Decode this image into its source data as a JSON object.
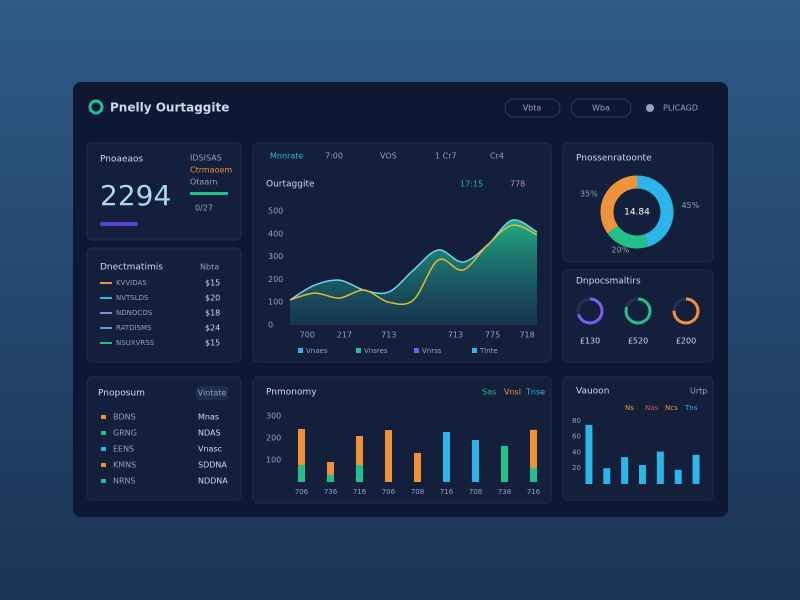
{
  "header": {
    "title": "Pnelly Ourtaggite",
    "buttons": [
      "Vbta",
      "Wba"
    ],
    "user": "PLICAGD"
  },
  "kpi": {
    "label": "Pnoaeaos",
    "value": "2294",
    "side": [
      "IDSISAS",
      "Ctrmaoem",
      "Otaarn"
    ],
    "foot": "0/27"
  },
  "activity": {
    "title": "Dnectmatimis",
    "badge": "Nbta",
    "rows": [
      {
        "label": "KVVIDAS",
        "value": "$15"
      },
      {
        "label": "NVTSLDS",
        "value": "$20"
      },
      {
        "label": "NDNOCOS",
        "value": "$18"
      },
      {
        "label": "RATDISMS",
        "value": "$24"
      },
      {
        "label": "NSUXVRSS",
        "value": "$15"
      }
    ]
  },
  "line_chart": {
    "type": "area",
    "tabs": [
      "Mnnrate",
      "7:00",
      "VOS",
      "1 Cr7",
      "Cr4"
    ],
    "title": "Ourtaggite",
    "chips": [
      "17:15",
      "778"
    ],
    "legend": [
      "Vnaes",
      "Vnsres",
      "Vnrss",
      "Tlnte"
    ],
    "x": [
      0,
      1,
      2,
      3,
      4,
      5,
      6,
      7,
      8,
      9,
      10
    ],
    "xlim": [
      0,
      10
    ],
    "xticks": [
      {
        "value": 0.7,
        "label": "700"
      },
      {
        "value": 2.2,
        "label": "217"
      },
      {
        "value": 4.0,
        "label": "713"
      },
      {
        "value": 6.7,
        "label": "713"
      },
      {
        "value": 8.2,
        "label": "775"
      },
      {
        "value": 9.6,
        "label": "718"
      }
    ],
    "ylim": [
      0,
      500
    ],
    "yticks": [
      0,
      100,
      200,
      300,
      400,
      500
    ],
    "series": [
      {
        "color": "#22c08a",
        "values": [
          110,
          175,
          197,
          153,
          145,
          241,
          329,
          276,
          351,
          460,
          408
        ]
      },
      {
        "color": "#e8b92e",
        "values": [
          110,
          140,
          118,
          153,
          100,
          110,
          285,
          241,
          351,
          438,
          395
        ]
      }
    ]
  },
  "donut": {
    "type": "pie",
    "title": "Pnossenratoonte",
    "center": "14.84",
    "values": [
      45,
      20,
      35
    ],
    "value_labels": [
      "45%",
      "20%",
      "35%"
    ],
    "colors": [
      "#2bb5e8",
      "#22c08a",
      "#f0923a"
    ]
  },
  "rings": {
    "title": "Dnpocsmaltirs",
    "values": [
      70,
      80,
      75
    ],
    "colors": [
      "#7b5cf0",
      "#22c08a",
      "#f0923a"
    ],
    "captions": [
      "£130",
      "£520",
      "£200"
    ]
  },
  "bottom_list": {
    "title": "Pnoposum",
    "badge": "Vintate",
    "rows": [
      [
        "BDNS",
        "Mnas"
      ],
      [
        "GRNG",
        "NDAS"
      ],
      [
        "EENS",
        "Vnasc"
      ],
      [
        "KMNS",
        "SDDNA"
      ],
      [
        "NRNS",
        "NDDNA"
      ]
    ]
  },
  "bar_chart": {
    "type": "bar",
    "title": "Pnmonomy",
    "chips": [
      "Sas",
      "Vnsl",
      "Tnse"
    ],
    "categories": [
      "706",
      "736",
      "716",
      "706",
      "708",
      "716",
      "708",
      "738",
      "716"
    ],
    "ylim": [
      0,
      300
    ],
    "yticks": [
      100,
      200,
      300
    ],
    "series": [
      {
        "color": "#22c08a",
        "values": [
          77,
          32,
          77,
          null,
          null,
          null,
          null,
          164,
          64
        ]
      },
      {
        "color": "#f0923a",
        "values": [
          164,
          59,
          132,
          236,
          132,
          null,
          null,
          null,
          173
        ]
      },
      {
        "color": "#2bb5e8",
        "values": [
          null,
          null,
          null,
          null,
          null,
          227,
          191,
          null,
          null
        ]
      }
    ]
  },
  "mini_bar": {
    "type": "bar",
    "title": "Vauoon",
    "badge": "Urtp",
    "chips": [
      "Ns",
      "Nas",
      "Ncs",
      "Tns"
    ],
    "ylim": [
      0,
      100
    ],
    "yticks": [
      20,
      40,
      60,
      80
    ],
    "color": "#2bb5e8",
    "values": [
      75,
      20,
      34,
      24,
      41,
      18,
      37
    ]
  }
}
